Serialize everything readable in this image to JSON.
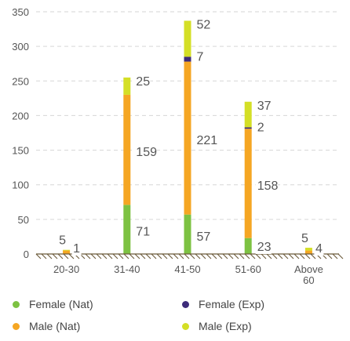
{
  "chart_data": {
    "type": "bar",
    "stacked": true,
    "title": "",
    "xlabel": "",
    "ylabel": "",
    "ylim": [
      0,
      350
    ],
    "yticks": [
      0,
      50,
      100,
      150,
      200,
      250,
      300,
      350
    ],
    "grid": true,
    "legend_placement": "bottom",
    "categories": [
      "20-30",
      "31-40",
      "41-50",
      "51-60",
      "Above 60"
    ],
    "series": [
      {
        "name": "Female (Nat)",
        "color": "#7dc242",
        "values": [
          0,
          71,
          57,
          23,
          0
        ]
      },
      {
        "name": "Male (Nat)",
        "color": "#f5a623",
        "values": [
          5,
          159,
          221,
          158,
          5
        ]
      },
      {
        "name": "Female (Exp)",
        "color": "#3d2c7a",
        "values": [
          0,
          0,
          7,
          2,
          0
        ]
      },
      {
        "name": "Male (Exp)",
        "color": "#d4df26",
        "values": [
          1,
          25,
          52,
          37,
          4
        ]
      }
    ],
    "data_labels": [
      {
        "category": "20-30",
        "text": "5"
      },
      {
        "category": "20-30",
        "text": "1"
      },
      {
        "category": "31-40",
        "text": "25"
      },
      {
        "category": "31-40",
        "text": "159"
      },
      {
        "category": "31-40",
        "text": "71"
      },
      {
        "category": "41-50",
        "text": "52"
      },
      {
        "category": "41-50",
        "text": "7"
      },
      {
        "category": "41-50",
        "text": "221"
      },
      {
        "category": "41-50",
        "text": "57"
      },
      {
        "category": "51-60",
        "text": "37"
      },
      {
        "category": "51-60",
        "text": "2"
      },
      {
        "category": "51-60",
        "text": "158"
      },
      {
        "category": "51-60",
        "text": "23"
      },
      {
        "category": "Above 60",
        "text": "5"
      },
      {
        "category": "Above 60",
        "text": "4"
      }
    ]
  }
}
